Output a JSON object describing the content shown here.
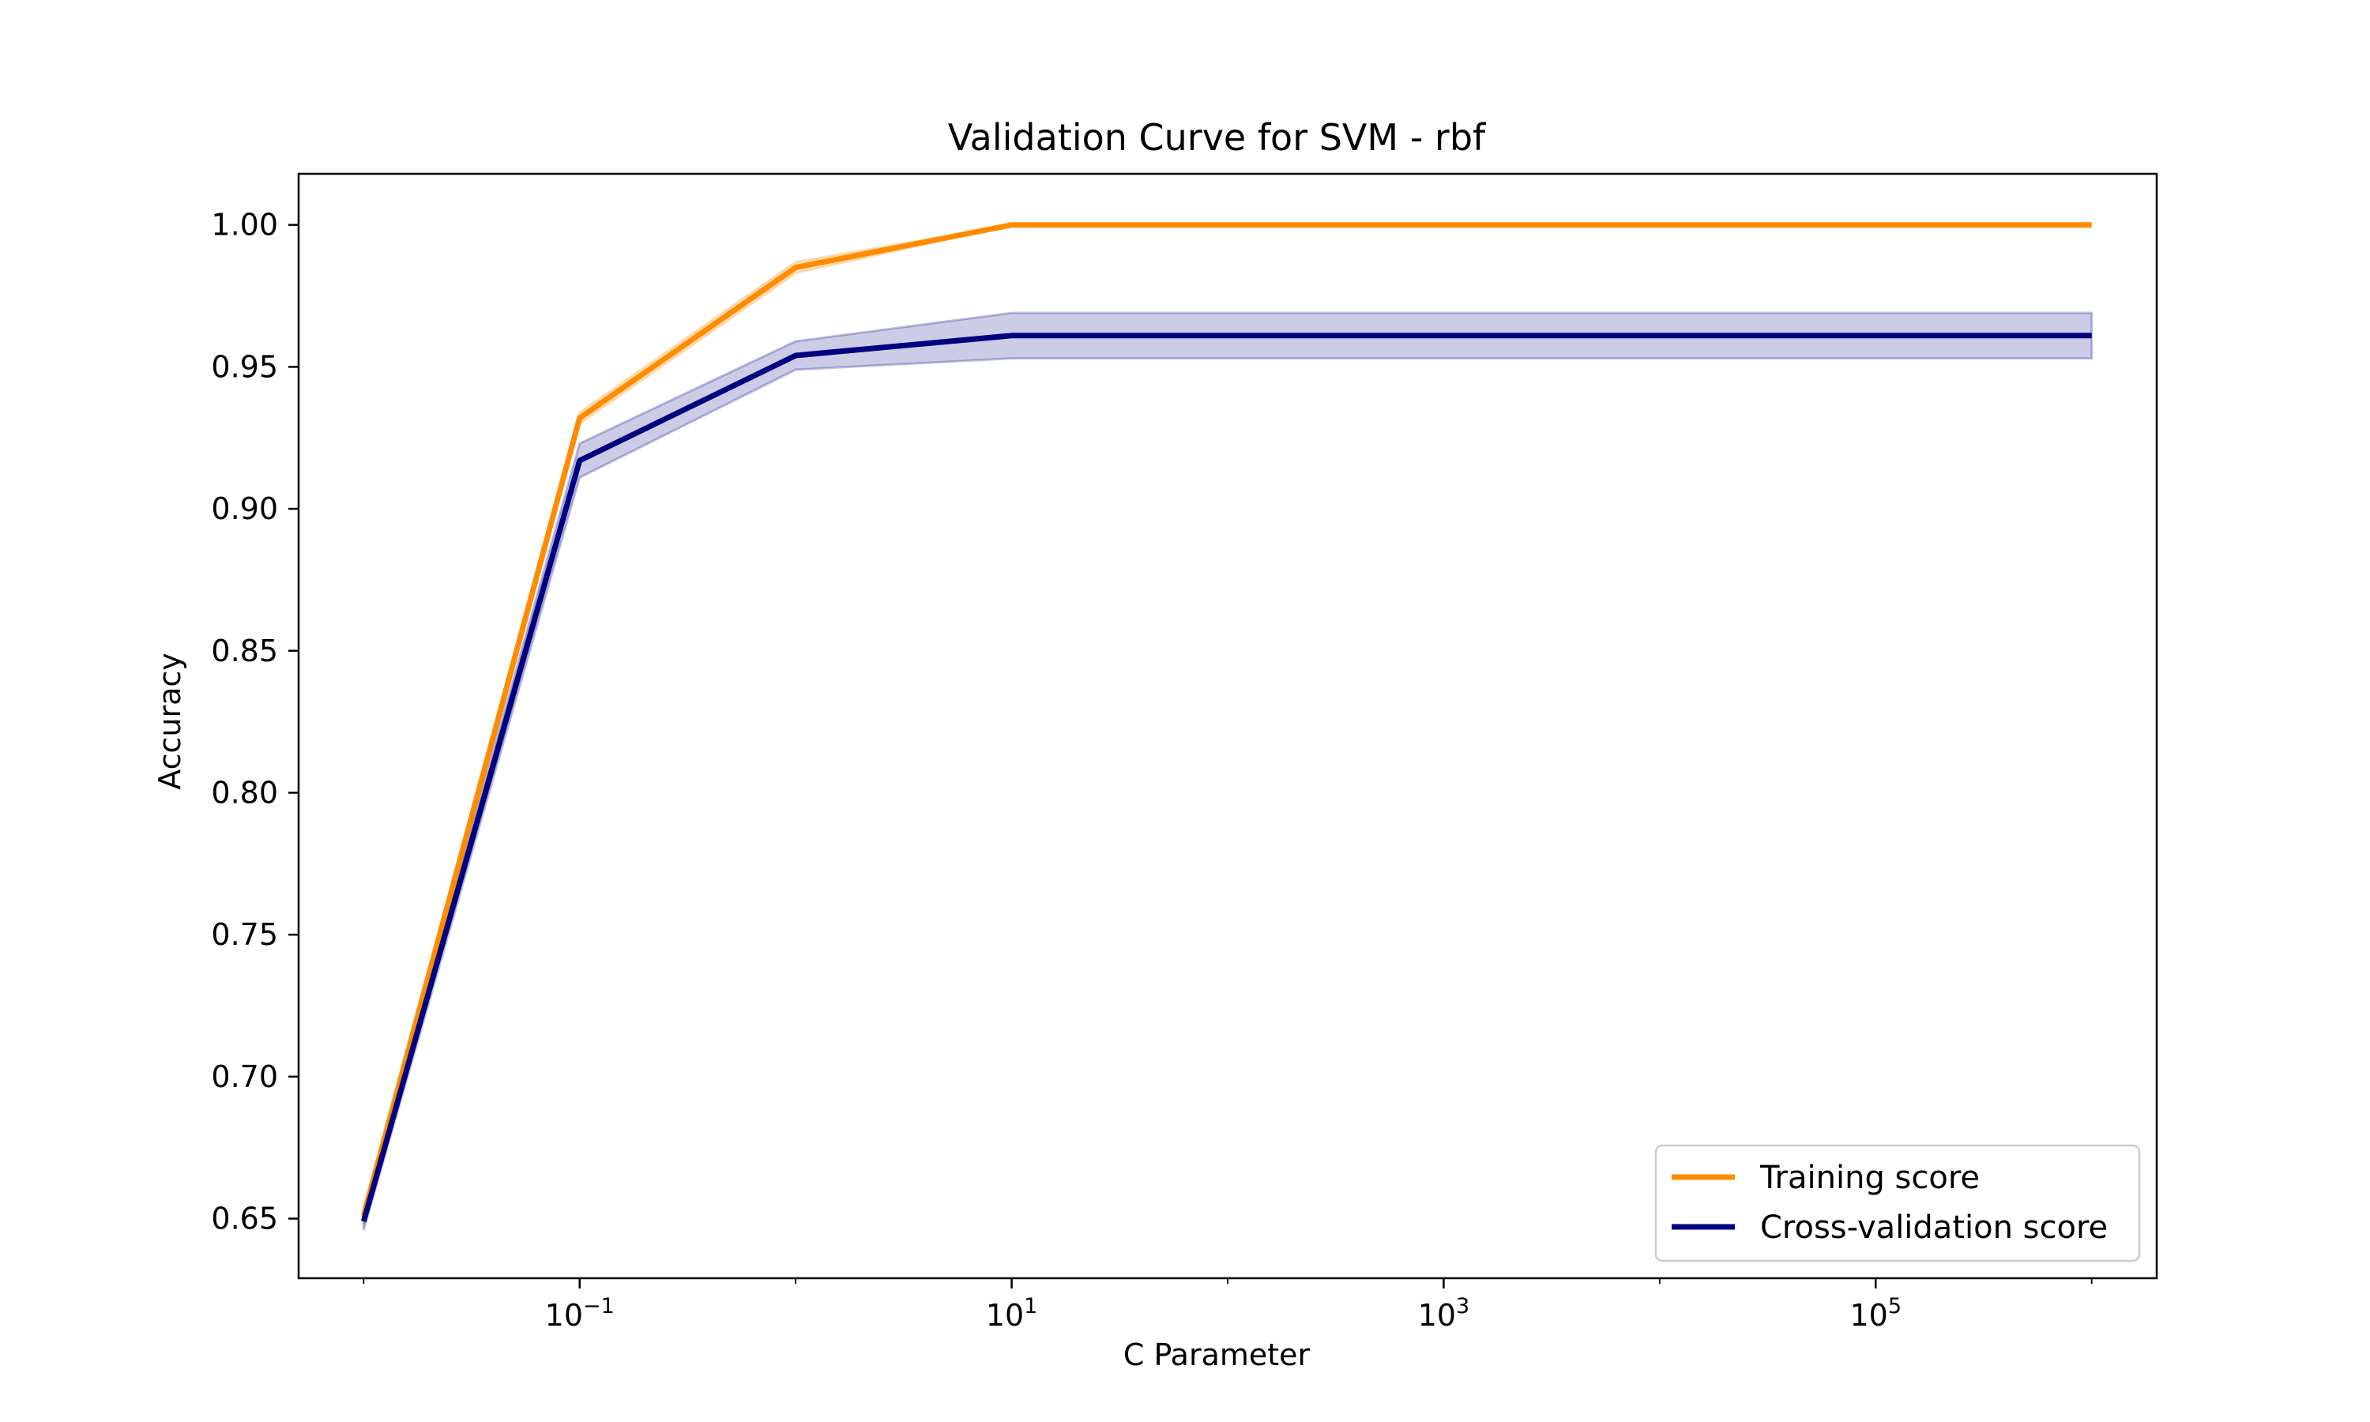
{
  "chart_data": {
    "type": "line",
    "title": "Validation Curve for SVM - rbf",
    "xlabel": "C Parameter",
    "ylabel": "Accuracy",
    "xscale": "log",
    "xlim": [
      0.005,
      2000000
    ],
    "ylim": [
      0.629,
      1.018
    ],
    "x": [
      0.01,
      0.1,
      1,
      10,
      100,
      1000,
      10000,
      100000,
      1000000
    ],
    "x_ticks": [
      {
        "value": 0.1,
        "base": "10",
        "exp": "−1"
      },
      {
        "value": 10,
        "base": "10",
        "exp": "1"
      },
      {
        "value": 1000,
        "base": "10",
        "exp": "3"
      },
      {
        "value": 100000,
        "base": "10",
        "exp": "5"
      }
    ],
    "y_ticks": [
      {
        "value": 0.65,
        "label": "0.65"
      },
      {
        "value": 0.7,
        "label": "0.70"
      },
      {
        "value": 0.75,
        "label": "0.75"
      },
      {
        "value": 0.8,
        "label": "0.80"
      },
      {
        "value": 0.85,
        "label": "0.85"
      },
      {
        "value": 0.9,
        "label": "0.90"
      },
      {
        "value": 0.95,
        "label": "0.95"
      },
      {
        "value": 1.0,
        "label": "1.00"
      }
    ],
    "series": [
      {
        "name": "Training score",
        "color": "#ff8c00",
        "values": [
          0.651,
          0.932,
          0.985,
          1.0,
          1.0,
          1.0,
          1.0,
          1.0,
          1.0
        ],
        "std": [
          0.003,
          0.002,
          0.002,
          0.0,
          0.0,
          0.0,
          0.0,
          0.0,
          0.0
        ]
      },
      {
        "name": "Cross-validation score",
        "color": "#000080",
        "values": [
          0.649,
          0.917,
          0.954,
          0.961,
          0.961,
          0.961,
          0.961,
          0.961,
          0.961
        ],
        "std": [
          0.003,
          0.006,
          0.005,
          0.008,
          0.008,
          0.008,
          0.008,
          0.008,
          0.008
        ]
      }
    ],
    "legend": {
      "position": "lower-right"
    },
    "grid": false
  }
}
